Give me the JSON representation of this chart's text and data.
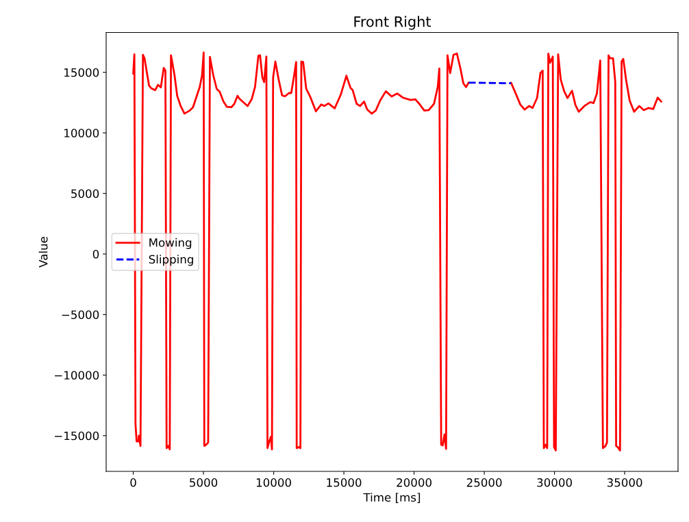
{
  "chart_data": {
    "type": "line",
    "title": "Front Right",
    "xlabel": "Time [ms]",
    "ylabel": "Value",
    "xlim": [
      -1930,
      38800
    ],
    "ylim": [
      -17950,
      18290
    ],
    "xticks": [
      0,
      5000,
      10000,
      15000,
      20000,
      25000,
      30000,
      35000
    ],
    "yticks": [
      {
        "value": -15000,
        "label": "−15000"
      },
      {
        "value": -10000,
        "label": "−10000"
      },
      {
        "value": -5000,
        "label": "−5000"
      },
      0,
      5000,
      10000,
      15000
    ],
    "grid": false,
    "legend": "left",
    "series": [
      {
        "name": "Mowing",
        "color": "#ff0000",
        "line_style": "solid",
        "x": [
          0,
          80,
          160,
          240,
          370,
          400,
          515,
          690,
          800,
          1125,
          1285,
          1560,
          1765,
          1965,
          2170,
          2290,
          2375,
          2490,
          2600,
          2685,
          2940,
          3130,
          3375,
          3650,
          4015,
          4255,
          4740,
          4900,
          5015,
          5060,
          5190,
          5335,
          5460,
          5700,
          5945,
          6155,
          6425,
          6665,
          6990,
          7200,
          7425,
          7550,
          7870,
          8145,
          8435,
          8675,
          8910,
          9030,
          9195,
          9320,
          9480,
          9560,
          9690,
          9800,
          9880,
          9960,
          10120,
          10360,
          10600,
          10810,
          11090,
          11250,
          11460,
          11600,
          11640,
          11780,
          11905,
          11970,
          12100,
          12320,
          12610,
          13010,
          13390,
          13610,
          13900,
          14350,
          14780,
          15180,
          15470,
          15630,
          15910,
          16150,
          16440,
          16660,
          16980,
          17270,
          17590,
          17990,
          18400,
          18800,
          19200,
          19760,
          20080,
          20330,
          20730,
          21050,
          21420,
          21690,
          21800,
          21930,
          22040,
          22170,
          22280,
          22380,
          22570,
          22810,
          23050,
          23300,
          23510,
          23700,
          23890,
          25400,
          26910,
          27310,
          27560,
          27870,
          28200,
          28440,
          28760,
          29000,
          29160,
          29240,
          29370,
          29480,
          29560,
          29690,
          29880,
          29970,
          30090,
          30260,
          30450,
          30690,
          30930,
          31250,
          31490,
          31730,
          32130,
          32540,
          32780,
          33020,
          33260,
          33450,
          33630,
          33740,
          33850,
          33950,
          34170,
          34330,
          34390,
          34500,
          34670,
          34780,
          34900,
          35100,
          35350,
          35670,
          36040,
          36360,
          36710,
          37030,
          37350,
          37600
        ],
        "values": [
          14900,
          16490,
          -14060,
          -15470,
          -15470,
          -15000,
          -15850,
          16450,
          16170,
          13910,
          13680,
          13530,
          13970,
          13760,
          15360,
          15140,
          -16030,
          -15850,
          -16130,
          16410,
          14760,
          13060,
          12220,
          11590,
          11840,
          12120,
          13810,
          14760,
          16640,
          -15850,
          -15750,
          -15570,
          16270,
          14760,
          13630,
          13400,
          12590,
          12160,
          12120,
          12400,
          13060,
          12840,
          12500,
          12220,
          12780,
          13810,
          16360,
          16410,
          14570,
          14190,
          16300,
          -16030,
          -15470,
          -15090,
          -16130,
          14570,
          15890,
          14380,
          13100,
          13020,
          13290,
          13290,
          14760,
          15850,
          -16030,
          -15940,
          -16030,
          15890,
          15850,
          13630,
          12970,
          11780,
          12350,
          12220,
          12440,
          12030,
          13160,
          14720,
          13720,
          13530,
          12400,
          12220,
          12590,
          11930,
          11590,
          11840,
          12680,
          13440,
          13010,
          13250,
          12910,
          12720,
          12780,
          12460,
          11840,
          11890,
          12400,
          13810,
          15320,
          -15750,
          -15800,
          -14900,
          -16090,
          16410,
          14940,
          16450,
          16550,
          15320,
          14100,
          13780,
          14150,
          null,
          14140,
          13060,
          12350,
          11930,
          12220,
          12060,
          12880,
          14940,
          15140,
          -16030,
          -15750,
          -16030,
          16550,
          15790,
          16300,
          -15940,
          -16220,
          16490,
          14380,
          13440,
          12880,
          13480,
          12310,
          11750,
          12220,
          12540,
          12460,
          13250,
          15980,
          -16030,
          -15850,
          -15570,
          16410,
          16170,
          16170,
          14190,
          -15850,
          -15940,
          -16220,
          15890,
          16110,
          14380,
          12680,
          11750,
          12220,
          11880,
          12060,
          11970,
          12910,
          12590
        ]
      },
      {
        "name": "Slipping",
        "color": "#0000ff",
        "line_style": "dashed",
        "x": [
          23890,
          25000,
          26000,
          26910
        ],
        "values": [
          14150,
          14130,
          14110,
          14100
        ]
      }
    ]
  }
}
